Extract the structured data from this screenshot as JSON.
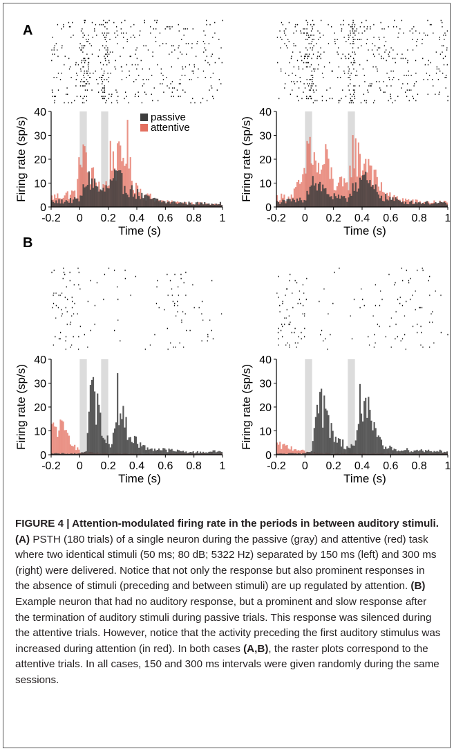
{
  "figure": {
    "panels": [
      {
        "letter": "A",
        "stimulus_interval_ms": 150
      },
      {
        "letter": "B",
        "stimulus_interval_ms": 300
      }
    ],
    "legend": {
      "passive": "passive",
      "attentive": "attentive"
    },
    "y_label": "Firing rate (sp/s)",
    "x_label": "Time (s)",
    "colors": {
      "passive": "#3d3d3d",
      "attentive": "#e36f5f",
      "stimulus": "#dcdcdc",
      "raster": "#000000"
    }
  },
  "chart_data": [
    {
      "type": "bar",
      "panel": "A",
      "side": "left",
      "xlabel": "Time (s)",
      "ylabel": "Firing rate (sp/s)",
      "xlim": [
        -0.2,
        1.0
      ],
      "ylim": [
        0,
        40
      ],
      "xticks": [
        "-0.2",
        "0",
        "0.2",
        "0.4",
        "0.6",
        "0.8",
        "1"
      ],
      "yticks": [
        "0",
        "10",
        "20",
        "30",
        "40"
      ],
      "stimuli": [
        [
          0.0,
          0.05
        ],
        [
          0.15,
          0.2
        ]
      ],
      "series": [
        {
          "name": "passive",
          "profile": [
            [
              -0.2,
              2
            ],
            [
              0.0,
              3
            ],
            [
              0.02,
              6
            ],
            [
              0.05,
              12
            ],
            [
              0.1,
              10
            ],
            [
              0.15,
              6
            ],
            [
              0.2,
              8
            ],
            [
              0.25,
              12
            ],
            [
              0.3,
              10
            ],
            [
              0.35,
              7
            ],
            [
              0.45,
              4
            ],
            [
              0.6,
              2
            ],
            [
              0.8,
              1.5
            ],
            [
              1.0,
              1.5
            ]
          ]
        },
        {
          "name": "attentive",
          "profile": [
            [
              -0.2,
              4
            ],
            [
              -0.1,
              5
            ],
            [
              -0.02,
              6
            ],
            [
              0.0,
              18
            ],
            [
              0.02,
              30
            ],
            [
              0.04,
              18
            ],
            [
              0.06,
              14
            ],
            [
              0.1,
              12
            ],
            [
              0.15,
              8
            ],
            [
              0.2,
              10
            ],
            [
              0.22,
              24
            ],
            [
              0.25,
              18
            ],
            [
              0.3,
              20
            ],
            [
              0.33,
              28
            ],
            [
              0.36,
              12
            ],
            [
              0.45,
              5
            ],
            [
              0.6,
              2
            ],
            [
              1.0,
              1
            ]
          ]
        }
      ],
      "raster": {
        "type": "attentive",
        "rows": 40,
        "base_rate": 0.8,
        "focus": [
          [
            0.0,
            0.05,
            4.0
          ],
          [
            0.15,
            0.2,
            3.5
          ]
        ]
      }
    },
    {
      "type": "bar",
      "panel": "A",
      "side": "right",
      "xlabel": "Time (s)",
      "ylabel": "Firing rate (sp/s)",
      "xlim": [
        -0.2,
        1.0
      ],
      "ylim": [
        0,
        40
      ],
      "xticks": [
        "-0.2",
        "0",
        "0.2",
        "0.4",
        "0.6",
        "0.8",
        "1"
      ],
      "yticks": [
        "0",
        "10",
        "20",
        "30",
        "40"
      ],
      "stimuli": [
        [
          0.0,
          0.05
        ],
        [
          0.3,
          0.35
        ]
      ],
      "series": [
        {
          "name": "passive",
          "profile": [
            [
              -0.2,
              2
            ],
            [
              0.0,
              3
            ],
            [
              0.02,
              8
            ],
            [
              0.05,
              12
            ],
            [
              0.1,
              9
            ],
            [
              0.2,
              4
            ],
            [
              0.3,
              3
            ],
            [
              0.33,
              9
            ],
            [
              0.4,
              12
            ],
            [
              0.45,
              9
            ],
            [
              0.55,
              4
            ],
            [
              0.7,
              2
            ],
            [
              1.0,
              1.5
            ]
          ]
        },
        {
          "name": "attentive",
          "profile": [
            [
              -0.2,
              4
            ],
            [
              -0.1,
              4
            ],
            [
              0.0,
              12
            ],
            [
              0.02,
              28
            ],
            [
              0.05,
              22
            ],
            [
              0.1,
              14
            ],
            [
              0.15,
              20
            ],
            [
              0.2,
              10
            ],
            [
              0.3,
              8
            ],
            [
              0.33,
              24
            ],
            [
              0.4,
              18
            ],
            [
              0.45,
              20
            ],
            [
              0.5,
              10
            ],
            [
              0.6,
              4
            ],
            [
              0.8,
              2
            ],
            [
              1.0,
              2
            ]
          ]
        }
      ],
      "raster": {
        "type": "attentive",
        "rows": 40,
        "base_rate": 0.8,
        "focus": [
          [
            0.0,
            0.05,
            4.0
          ],
          [
            0.3,
            0.35,
            3.5
          ]
        ]
      }
    },
    {
      "type": "bar",
      "panel": "B",
      "side": "left",
      "xlabel": "Time (s)",
      "ylabel": "Firing rate (sp/s)",
      "xlim": [
        -0.2,
        1.0
      ],
      "ylim": [
        0,
        40
      ],
      "xticks": [
        "-0.2",
        "0",
        "0.2",
        "0.4",
        "0.6",
        "0.8",
        "1"
      ],
      "yticks": [
        "0",
        "10",
        "20",
        "30",
        "40"
      ],
      "stimuli": [
        [
          0.0,
          0.05
        ],
        [
          0.15,
          0.2
        ]
      ],
      "series": [
        {
          "name": "passive",
          "profile": [
            [
              -0.2,
              0.5
            ],
            [
              0.0,
              0.5
            ],
            [
              0.05,
              2
            ],
            [
              0.08,
              28
            ],
            [
              0.12,
              20
            ],
            [
              0.18,
              8
            ],
            [
              0.22,
              2
            ],
            [
              0.26,
              27
            ],
            [
              0.3,
              15
            ],
            [
              0.35,
              8
            ],
            [
              0.45,
              3
            ],
            [
              0.6,
              2
            ],
            [
              0.8,
              1
            ],
            [
              1.0,
              1.5
            ]
          ]
        },
        {
          "name": "attentive",
          "profile": [
            [
              -0.2,
              10
            ],
            [
              -0.15,
              12
            ],
            [
              -0.1,
              9
            ],
            [
              -0.05,
              6
            ],
            [
              -0.02,
              3
            ],
            [
              0.0,
              1
            ],
            [
              0.2,
              0.5
            ],
            [
              1.0,
              0.5
            ]
          ]
        }
      ],
      "raster": {
        "type": "attentive",
        "rows": 40,
        "base_rate": 0.12,
        "focus": [
          [
            -0.2,
            0.0,
            6.0
          ],
          [
            0.6,
            0.9,
            3.0
          ]
        ]
      }
    },
    {
      "type": "bar",
      "panel": "B",
      "side": "right",
      "xlabel": "Time (s)",
      "ylabel": "Firing rate (sp/s)",
      "xlim": [
        -0.2,
        1.0
      ],
      "ylim": [
        0,
        40
      ],
      "xticks": [
        "-0.2",
        "0",
        "0.2",
        "0.4",
        "0.6",
        "0.8",
        "1"
      ],
      "yticks": [
        "0",
        "10",
        "20",
        "30",
        "40"
      ],
      "stimuli": [
        [
          0.0,
          0.05
        ],
        [
          0.3,
          0.35
        ]
      ],
      "series": [
        {
          "name": "passive",
          "profile": [
            [
              -0.2,
              0.5
            ],
            [
              0.0,
              0.5
            ],
            [
              0.05,
              2
            ],
            [
              0.08,
              30
            ],
            [
              0.12,
              20
            ],
            [
              0.2,
              8
            ],
            [
              0.3,
              3
            ],
            [
              0.35,
              4
            ],
            [
              0.38,
              20
            ],
            [
              0.42,
              25
            ],
            [
              0.46,
              12
            ],
            [
              0.55,
              3
            ],
            [
              0.7,
              2
            ],
            [
              1.0,
              1.5
            ]
          ]
        },
        {
          "name": "attentive",
          "profile": [
            [
              -0.2,
              4
            ],
            [
              -0.1,
              3
            ],
            [
              -0.02,
              2
            ],
            [
              0.0,
              1
            ],
            [
              0.2,
              0.5
            ],
            [
              1.0,
              0.5
            ]
          ]
        }
      ],
      "raster": {
        "type": "attentive",
        "rows": 40,
        "base_rate": 0.12,
        "focus": [
          [
            -0.2,
            0.0,
            6.0
          ],
          [
            0.6,
            0.9,
            3.0
          ]
        ]
      }
    }
  ],
  "caption": {
    "label": "FIGURE 4 | Attention-modulated firing rate in the periods in between auditory stimuli.",
    "part1_label": "(A)",
    "part1_text": " PSTH (180 trials) of a single neuron during the passive (gray) and attentive (red) task where two identical stimuli (50 ms; 80 dB; 5322 Hz) separated by 150 ms (left) and 300 ms (right) were delivered. Notice that not only the response but also prominent responses in the absence of stimuli (preceding and between stimuli) are up regulated by attention. ",
    "part2_label": "(B)",
    "part2_text": " Example neuron that had no auditory response, but a prominent and slow response after the termination of auditory stimuli during passive trials. This response was silenced during the attentive trials. However, notice that the activity preceding the first auditory stimulus was increased during attention (in red). In both cases ",
    "part3_label": "(A,B)",
    "part3_text": ", the raster plots correspond to the attentive trials. In all cases, 150 and 300 ms intervals were given randomly during the same sessions."
  }
}
